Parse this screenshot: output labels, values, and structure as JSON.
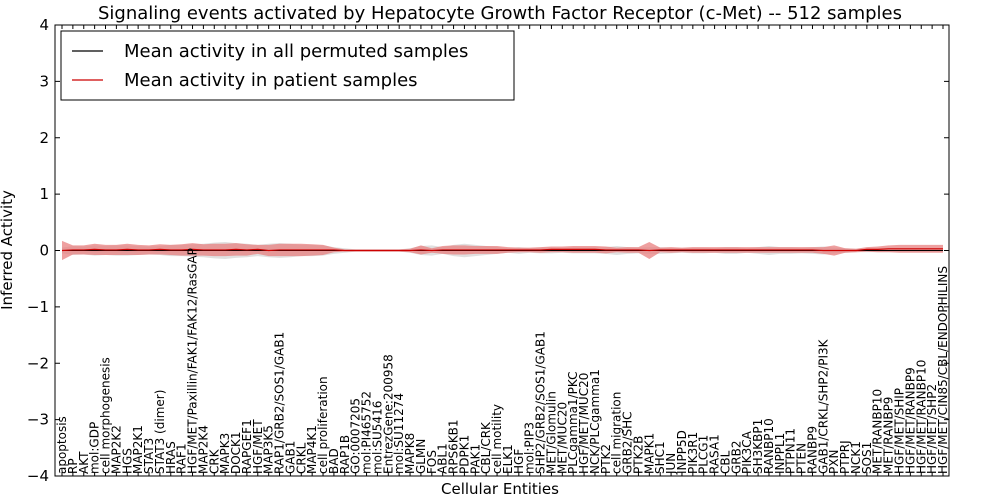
{
  "chart_data": {
    "type": "line",
    "title": "Signaling events activated by Hepatocyte Growth Factor Receptor (c-Met) -- 512 samples",
    "xlabel": "Cellular Entities",
    "ylabel": "Inferred Activity",
    "ylim": [
      -4,
      4
    ],
    "yticks": [
      4,
      3,
      2,
      1,
      0,
      -1,
      -2,
      -3,
      -4
    ],
    "ytick_labels": [
      "4",
      "3",
      "2",
      "1",
      "0",
      "−1",
      "−2",
      "−3",
      "−4"
    ],
    "legend_position": "top-left",
    "grid": false,
    "categories": [
      "apoptosis",
      "RP",
      "AKT",
      "mol:GDP",
      "cell morphogenesis",
      "MAP2K2",
      "HGS",
      "MAP2K1",
      "STAT3",
      "STAT3 (dimer)",
      "HRAS",
      "RAF1",
      "HGF/MET/Paxillin/FAK1/FAK12/RasGAP",
      "MAP2K4",
      "CRK",
      "MAPK3",
      "DOCK1",
      "RAPGEF1",
      "HGF/MET",
      "MAP3K5",
      "RAP1/GRB2/SOS1/GAB1",
      "GAB1",
      "CRKL",
      "MAP4K1",
      "cell proliferation",
      "BAD",
      "RAP1B",
      "GO:0007205",
      "mol:PI465752",
      "mol:SU5416",
      "EntrezGene:200958",
      "mol:SU11274",
      "MAPK8",
      "GLMN",
      "FOS",
      "ABL1",
      "RPS6KB1",
      "PDPK1",
      "PAK1",
      "CBL/CRK",
      "cell motility",
      "ELK1",
      "HGF",
      "mol:PIP3",
      "SHP2/GRB2/SOS1/GAB1",
      "MET/Glomulin",
      "MET/MUC20",
      "PLCgamma1/PKC",
      "HGF/MET/MUC20",
      "NCK/PLCgamma1",
      "PTK2",
      "cell migration",
      "GRB2/SHC",
      "PTK2B",
      "MAPK1",
      "SHC1",
      "JUN",
      "INPP5D",
      "PIK3R1",
      "PLCG1",
      "RASA1",
      "CBL",
      "GRB2",
      "PIK3CA",
      "SH3KBP1",
      "RANBP10",
      "INPPL1",
      "PTPN11",
      "PTEN",
      "RANBP9",
      "GAB1/CRKL/SHP2/PI3K",
      "PXN",
      "PTPRJ",
      "NCK1",
      "SOS1",
      "MET/RANBP10",
      "MET/RANBP9",
      "HGF/MET/SHIP",
      "HGF/MET/RANBP9",
      "HGF/MET/RANBP10",
      "HGF/MET/SHP2",
      "HGF/MET/CIN85/CBL/ENDOPHILINS"
    ],
    "series": [
      {
        "name": "Mean activity in all permuted samples",
        "color": "#000000",
        "values": [
          0,
          0,
          0,
          0,
          0,
          0,
          0,
          0,
          0,
          0,
          0,
          0,
          0,
          0,
          0,
          0,
          0,
          0,
          0,
          0,
          0,
          0,
          0,
          0,
          0,
          0,
          0,
          0,
          0,
          0,
          0,
          0,
          0,
          0,
          0,
          0,
          0,
          0,
          0,
          0,
          0,
          0,
          0,
          0,
          0,
          0,
          0,
          0,
          0,
          0,
          0,
          0,
          0,
          0,
          0,
          0,
          0,
          0,
          0,
          0,
          0,
          0,
          0,
          0,
          0,
          0,
          0,
          0,
          0,
          0,
          0,
          0,
          0,
          0,
          0,
          0,
          0,
          0,
          0,
          0,
          0,
          0
        ],
        "band": [
          0.05,
          0.08,
          0.07,
          0.09,
          0.08,
          0.09,
          0.09,
          0.08,
          0.07,
          0.08,
          0.1,
          0.1,
          0.11,
          0.12,
          0.14,
          0.15,
          0.13,
          0.12,
          0.1,
          0.12,
          0.13,
          0.12,
          0.1,
          0.1,
          0.09,
          0.06,
          0.04,
          0.02,
          0.02,
          0.02,
          0.02,
          0.02,
          0.04,
          0.08,
          0.09,
          0.06,
          0.1,
          0.12,
          0.1,
          0.08,
          0.06,
          0.04,
          0.06,
          0.04,
          0.05,
          0.05,
          0.04,
          0.05,
          0.05,
          0.05,
          0.06,
          0.08,
          0.06,
          0.05,
          0.06,
          0.06,
          0.05,
          0.04,
          0.05,
          0.05,
          0.04,
          0.06,
          0.06,
          0.04,
          0.06,
          0.08,
          0.06,
          0.06,
          0.05,
          0.06,
          0.07,
          0.05,
          0.04,
          0.03,
          0.03,
          0.03,
          0.03,
          0.03,
          0.03,
          0.03,
          0.03,
          0.03
        ]
      },
      {
        "name": "Mean activity in patient samples",
        "color": "#cc0000",
        "fill": "#e88080",
        "values": [
          0,
          0.01,
          0.01,
          0.02,
          0.01,
          0.01,
          0.02,
          0.01,
          0.01,
          0.02,
          0.01,
          0.01,
          0.02,
          0.01,
          0.01,
          0.01,
          0.02,
          0.01,
          0.02,
          0,
          0.01,
          0.01,
          0.01,
          0.01,
          0.01,
          0.01,
          0,
          0,
          0,
          0,
          0,
          0,
          0,
          0.01,
          0,
          0.01,
          0.01,
          0.01,
          0.01,
          0.01,
          0.01,
          0.01,
          0.01,
          0.01,
          0.01,
          0.02,
          0.02,
          0.02,
          0.02,
          0.02,
          0.01,
          0.01,
          0.01,
          0.01,
          0,
          0.01,
          0.01,
          0.01,
          0.01,
          0.01,
          0.01,
          0.01,
          0.01,
          0.01,
          0.01,
          0.01,
          0.01,
          0.01,
          0.01,
          0.01,
          0,
          0,
          0,
          0,
          0.02,
          0.02,
          0.03,
          0.03,
          0.03,
          0.03,
          0.03,
          0.03
        ],
        "band": [
          0.17,
          0.08,
          0.08,
          0.1,
          0.09,
          0.09,
          0.1,
          0.09,
          0.08,
          0.09,
          0.09,
          0.1,
          0.11,
          0.1,
          0.11,
          0.11,
          0.11,
          0.1,
          0.08,
          0.1,
          0.11,
          0.11,
          0.11,
          0.1,
          0.09,
          0.04,
          0.02,
          0.02,
          0.02,
          0.02,
          0.02,
          0.02,
          0.03,
          0.08,
          0.04,
          0.07,
          0.08,
          0.08,
          0.07,
          0.07,
          0.07,
          0.05,
          0.04,
          0.04,
          0.05,
          0.05,
          0.05,
          0.06,
          0.06,
          0.06,
          0.06,
          0.04,
          0.05,
          0.05,
          0.15,
          0.04,
          0.05,
          0.04,
          0.05,
          0.05,
          0.05,
          0.05,
          0.05,
          0.05,
          0.05,
          0.05,
          0.05,
          0.05,
          0.05,
          0.05,
          0.06,
          0.09,
          0.04,
          0.03,
          0.04,
          0.05,
          0.06,
          0.07,
          0.07,
          0.07,
          0.07,
          0.07
        ]
      }
    ]
  }
}
